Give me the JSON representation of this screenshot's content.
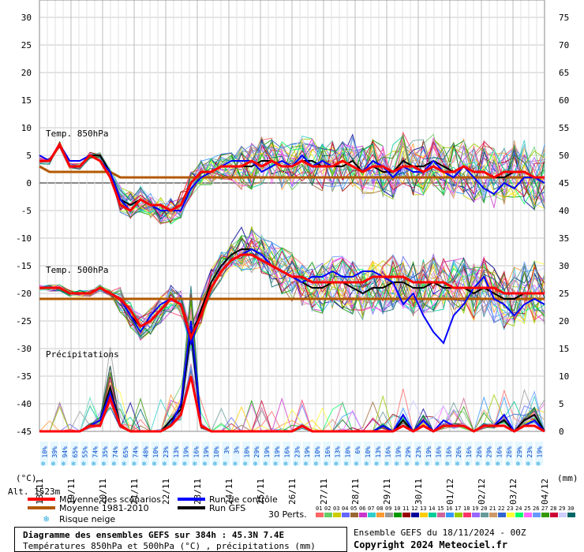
{
  "chart_data": {
    "type": "line",
    "title": "Diagramme des ensembles GEFS sur 384h : 45.3N 7.4E",
    "subtitle": "Températures 850hPa et 500hPa (°C) , précipitations (mm)",
    "left_axis": {
      "label": "(°C)",
      "ticks": [
        30,
        25,
        20,
        15,
        10,
        5,
        0,
        -5,
        -10,
        -15,
        -20,
        -25,
        -30,
        -35,
        -40,
        -45
      ],
      "range": [
        -45,
        30
      ]
    },
    "right_axis": {
      "label": "(mm)",
      "ticks": [
        75,
        70,
        65,
        60,
        55,
        50,
        45,
        40,
        35,
        30,
        25,
        20,
        15,
        10,
        5,
        0
      ],
      "range": [
        0,
        75
      ]
    },
    "x_dates": [
      "19/11",
      "20/11",
      "21/11",
      "22/11",
      "23/11",
      "24/11",
      "25/11",
      "26/11",
      "27/11",
      "28/11",
      "29/11",
      "30/11",
      "01/12",
      "02/12",
      "03/12",
      "04/12"
    ],
    "x_first_label": "18/11",
    "panel_labels": {
      "t850": "Temp. 850hPa",
      "t500": "Temp. 500hPa",
      "precip": "Précipitations"
    },
    "altitude": "Alt. 1523m",
    "snow_risk_pct": [
      "10%",
      "39%",
      "94%",
      "65%",
      "55%",
      "74%",
      "35%",
      "74%",
      "65%",
      "74%",
      "48%",
      "10%",
      "23%",
      "13%",
      "19%",
      "16%",
      "19%",
      "10%",
      "3%",
      "3%",
      "10%",
      "29%",
      "19%",
      "19%",
      "16%",
      "23%",
      "19%",
      "10%",
      "16%",
      "13%",
      "10%",
      "6%",
      "10%",
      "13%",
      "16%",
      "19%",
      "29%",
      "23%",
      "19%",
      "16%",
      "16%",
      "26%",
      "16%",
      "26%",
      "29%",
      "16%",
      "26%",
      "29%",
      "23%",
      "19%"
    ],
    "series": [
      {
        "name": "Moyenne des scénarios",
        "color": "#ff0000",
        "t850": [
          4,
          4,
          7,
          3,
          3,
          5,
          4,
          1,
          -4,
          -5,
          -3,
          -4,
          -4,
          -5,
          -4,
          0,
          2,
          2,
          3,
          3,
          3,
          4,
          3,
          4,
          3,
          3,
          4,
          3,
          3,
          3,
          4,
          3,
          2,
          3,
          3,
          2,
          3,
          3,
          2,
          3,
          2,
          2,
          3,
          2,
          2,
          1,
          2,
          2,
          2,
          1,
          1
        ],
        "t500": [
          -19,
          -19,
          -19,
          -20,
          -20,
          -20,
          -19,
          -20,
          -21,
          -23,
          -26,
          -25,
          -23,
          -21,
          -22,
          -28,
          -24,
          -19,
          -16,
          -14,
          -13,
          -13,
          -14,
          -15,
          -16,
          -17,
          -17,
          -18,
          -18,
          -18,
          -18,
          -18,
          -18,
          -17,
          -17,
          -17,
          -17,
          -18,
          -18,
          -18,
          -18,
          -19,
          -19,
          -19,
          -19,
          -19,
          -20,
          -20,
          -20,
          -20,
          -20
        ],
        "precip": [
          0,
          0,
          0,
          0,
          0,
          1,
          1,
          6,
          1,
          0,
          0,
          0,
          0,
          1,
          3,
          10,
          1,
          0,
          0,
          0,
          0,
          0,
          0,
          0,
          0,
          0,
          1,
          0,
          0,
          0,
          0,
          0,
          0,
          0,
          0,
          0,
          1,
          0,
          1,
          0,
          1,
          1,
          1,
          0,
          1,
          1,
          1,
          0,
          1,
          1,
          0
        ]
      },
      {
        "name": "Moyenne 1981-2010",
        "color": "#b35900",
        "t850": [
          3,
          2,
          2,
          2,
          2,
          2,
          2,
          2,
          1,
          1,
          1,
          1,
          1,
          1,
          1,
          1,
          1,
          1,
          1,
          1,
          1,
          1,
          1,
          1,
          1,
          1,
          1,
          1,
          1,
          1,
          1,
          1,
          1,
          1,
          1,
          1,
          1,
          1,
          1,
          1,
          1,
          1,
          1,
          1,
          1,
          1,
          1,
          1,
          1,
          1,
          1
        ],
        "t500": [
          -21,
          -21,
          -21,
          -21,
          -21,
          -21,
          -21,
          -21,
          -21,
          -21,
          -21,
          -21,
          -21,
          -21,
          -21,
          -21,
          -21,
          -21,
          -21,
          -21,
          -21,
          -21,
          -21,
          -21,
          -21,
          -21,
          -21,
          -21,
          -21,
          -21,
          -21,
          -21,
          -21,
          -21,
          -21,
          -21,
          -21,
          -21,
          -21,
          -21,
          -21,
          -21,
          -21,
          -21,
          -21,
          -21,
          -21,
          -21,
          -21,
          -21,
          -21
        ]
      },
      {
        "name": "Run de contrôle",
        "color": "#0000ff",
        "t850": [
          5,
          4,
          7,
          4,
          4,
          5,
          4,
          2,
          -3,
          -5,
          -3,
          -4,
          -5,
          -5,
          -5,
          -1,
          1,
          2,
          3,
          4,
          4,
          4,
          2,
          3,
          4,
          3,
          5,
          3,
          4,
          3,
          4,
          3,
          2,
          4,
          3,
          1,
          3,
          2,
          2,
          4,
          2,
          1,
          3,
          1,
          -1,
          -2,
          0,
          -1,
          1,
          1,
          0
        ],
        "t500": [
          -19,
          -19,
          -19,
          -20,
          -20,
          -20,
          -19,
          -20,
          -21,
          -24,
          -27,
          -24,
          -22,
          -21,
          -22,
          -29,
          -24,
          -19,
          -16,
          -14,
          -13,
          -12,
          -13,
          -15,
          -16,
          -17,
          -18,
          -17,
          -17,
          -16,
          -17,
          -17,
          -16,
          -16,
          -17,
          -18,
          -22,
          -20,
          -24,
          -27,
          -29,
          -24,
          -22,
          -19,
          -17,
          -21,
          -22,
          -24,
          -22,
          -21,
          -22
        ],
        "precip": [
          0,
          0,
          0,
          0,
          0,
          1,
          2,
          7,
          1,
          0,
          0,
          0,
          0,
          1,
          5,
          20,
          1,
          0,
          0,
          0,
          0,
          0,
          0,
          0,
          0,
          0,
          1,
          0,
          0,
          0,
          0,
          0,
          0,
          0,
          1,
          0,
          3,
          0,
          2,
          0,
          2,
          1,
          1,
          0,
          1,
          1,
          3,
          0,
          1,
          2,
          0
        ]
      },
      {
        "name": "Run GFS",
        "color": "#000000",
        "t850": [
          4,
          4,
          7,
          3,
          3,
          5,
          5,
          2,
          -3,
          -4,
          -3,
          -4,
          -5,
          -5,
          -4,
          0,
          2,
          2,
          3,
          3,
          3,
          3,
          4,
          4,
          3,
          3,
          4,
          4,
          3,
          3,
          3,
          4,
          2,
          3,
          2,
          2,
          4,
          3,
          3,
          4,
          3,
          2,
          3,
          2,
          2,
          1,
          1,
          2,
          2,
          1,
          1
        ],
        "t500": [
          -19,
          -19,
          -19,
          -20,
          -20,
          -20,
          -19,
          -20,
          -21,
          -24,
          -26,
          -25,
          -23,
          -21,
          -22,
          -28,
          -23,
          -18,
          -15,
          -13,
          -12,
          -12,
          -13,
          -15,
          -16,
          -17,
          -18,
          -19,
          -19,
          -18,
          -18,
          -19,
          -20,
          -19,
          -19,
          -18,
          -18,
          -19,
          -19,
          -18,
          -19,
          -19,
          -19,
          -20,
          -19,
          -20,
          -21,
          -21,
          -20,
          -20,
          -20
        ],
        "precip": [
          0,
          0,
          0,
          0,
          0,
          1,
          2,
          8,
          1,
          0,
          0,
          0,
          0,
          2,
          4,
          18,
          1,
          0,
          0,
          0,
          0,
          0,
          0,
          0,
          0,
          0,
          1,
          0,
          0,
          0,
          0,
          0,
          0,
          0,
          1,
          0,
          2,
          0,
          2,
          0,
          1,
          1,
          1,
          0,
          1,
          1,
          2,
          0,
          2,
          3,
          0
        ]
      }
    ],
    "legend": {
      "pert_label": "30 Perts.",
      "snow_label": "Risque neige"
    },
    "pert_ids": [
      "01",
      "02",
      "03",
      "04",
      "05",
      "06",
      "07",
      "08",
      "09",
      "10",
      "11",
      "12",
      "13",
      "14",
      "15",
      "16",
      "17",
      "18",
      "19",
      "20",
      "21",
      "22",
      "23",
      "24",
      "25",
      "26",
      "27",
      "28",
      "29",
      "30"
    ],
    "pert_colors": [
      "#ff6666",
      "#66cc66",
      "#cccc00",
      "#6666ff",
      "#996633",
      "#cc33cc",
      "#33cccc",
      "#ff9933",
      "#999999",
      "#009900",
      "#990000",
      "#000099",
      "#ffcc00",
      "#00cc99",
      "#cc6699",
      "#3399ff",
      "#99cc00",
      "#ff3366",
      "#9966ff",
      "#669999",
      "#cc9966",
      "#3366cc",
      "#ffff33",
      "#00ff66",
      "#ff66ff",
      "#6699ff",
      "#339900",
      "#cc0033",
      "#ccccff",
      "#006666"
    ]
  },
  "footer": {
    "run_info": "Ensemble GEFS du 18/11/2024 - 00Z",
    "copyright": "Copyright 2024 Meteociel.fr"
  }
}
